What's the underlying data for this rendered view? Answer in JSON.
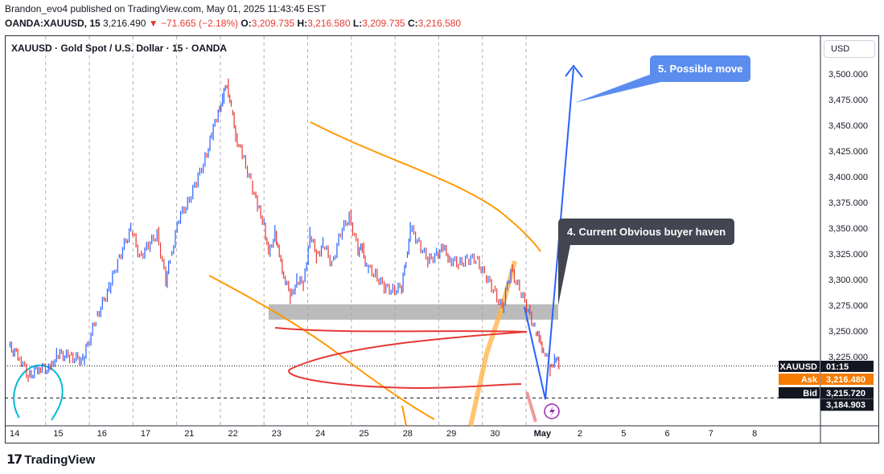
{
  "header": {
    "publisher_line": "Brandon_evo4 published on TradingView.com, May 01, 2025 11:43:45 EST",
    "symbol": "OANDA:XAUUSD, 15",
    "last": "3,216.490",
    "change": "▼ −71.665 (−2.18%)",
    "o_label": "O:",
    "o_value": "3,209.735",
    "h_label": "H:",
    "h_value": "3,216.580",
    "l_label": "L:",
    "l_value": "3,209.735",
    "c_label": "C:",
    "c_value": "3,216.580"
  },
  "chart_title": "XAUUSD · Gold Spot / U.S. Dollar · 15 · OANDA",
  "currency_button": "USD",
  "footer_brand": "TradingView",
  "colors": {
    "up": "#2962ff",
    "down": "#e53935",
    "orange": "#ff9800",
    "zone": "#9e9e9e",
    "accent_blue": "#5b8def"
  },
  "chart_data": {
    "type": "line",
    "x_tick_labels": [
      "14",
      "15",
      "16",
      "17",
      "21",
      "22",
      "23",
      "24",
      "25",
      "28",
      "29",
      "30",
      "May",
      "2",
      "5",
      "6",
      "7",
      "8"
    ],
    "x_tick_index": [
      0,
      1,
      2,
      3,
      4,
      5,
      6,
      7,
      8,
      9,
      10,
      11,
      12,
      13,
      14,
      15,
      16,
      17
    ],
    "ylim": [
      3165,
      3520
    ],
    "y_ticks": [
      3500,
      3475,
      3450,
      3425,
      3400,
      3375,
      3350,
      3325,
      3300,
      3275,
      3250,
      3225
    ],
    "y_tick_labels": [
      "3,500.000",
      "3,475.000",
      "3,450.000",
      "3,425.000",
      "3,400.000",
      "3,375.000",
      "3,350.000",
      "3,325.000",
      "3,300.000",
      "3,275.000",
      "3,250.000",
      "3,225.000"
    ],
    "series": [
      {
        "x": [
          -0.1,
          0.15,
          0.35,
          0.6,
          0.85,
          1.0,
          1.3,
          1.6,
          1.9,
          2.2,
          2.4,
          2.7,
          2.9,
          3.1,
          3.3,
          3.5,
          3.6,
          3.8,
          4.0,
          4.2,
          4.4,
          4.55,
          4.7,
          4.8,
          4.9,
          5.0,
          5.1,
          5.25,
          5.45,
          5.6,
          5.75,
          5.85,
          6.0,
          6.1,
          6.2,
          6.35,
          6.5,
          6.65,
          6.8,
          6.95,
          7.1,
          7.3,
          7.5,
          7.7,
          7.9,
          8.0,
          8.1,
          8.3,
          8.5,
          8.7,
          8.9,
          9.0,
          9.1,
          9.3,
          9.5,
          9.7,
          9.85,
          10.0,
          10.2,
          10.4,
          10.6,
          10.8,
          11.0,
          11.2,
          11.4,
          11.6,
          11.8,
          11.95,
          12.05,
          12.15,
          12.3,
          12.4,
          12.5
        ],
        "y": [
          3235,
          3225,
          3205,
          3215,
          3212,
          3228,
          3225,
          3222,
          3262,
          3292,
          3318,
          3350,
          3322,
          3333,
          3345,
          3298,
          3320,
          3360,
          3375,
          3395,
          3418,
          3440,
          3465,
          3475,
          3492,
          3465,
          3440,
          3420,
          3395,
          3370,
          3355,
          3322,
          3348,
          3320,
          3305,
          3282,
          3300,
          3295,
          3345,
          3322,
          3335,
          3315,
          3345,
          3362,
          3328,
          3330,
          3312,
          3305,
          3292,
          3290,
          3292,
          3320,
          3350,
          3335,
          3318,
          3325,
          3330,
          3320,
          3315,
          3320,
          3320,
          3305,
          3290,
          3272,
          3310,
          3290,
          3270,
          3252,
          3240,
          3232,
          3212,
          3225,
          3216
        ]
      }
    ],
    "current_price": {
      "label": "XAUUSD",
      "value": "01:15",
      "y": 3216
    },
    "ask": {
      "label": "Ask",
      "value": "3,216.480"
    },
    "bid": {
      "label": "Bid",
      "value": "3,215.720"
    },
    "target_level": {
      "value": "3,184.903",
      "y": 3184.9
    },
    "support_zone": {
      "y_low": 3261,
      "y_high": 3276
    },
    "annotations": [
      {
        "text": "5. Possible move"
      },
      {
        "text": "4. Current Obvious buyer haven"
      }
    ],
    "grid": true
  }
}
